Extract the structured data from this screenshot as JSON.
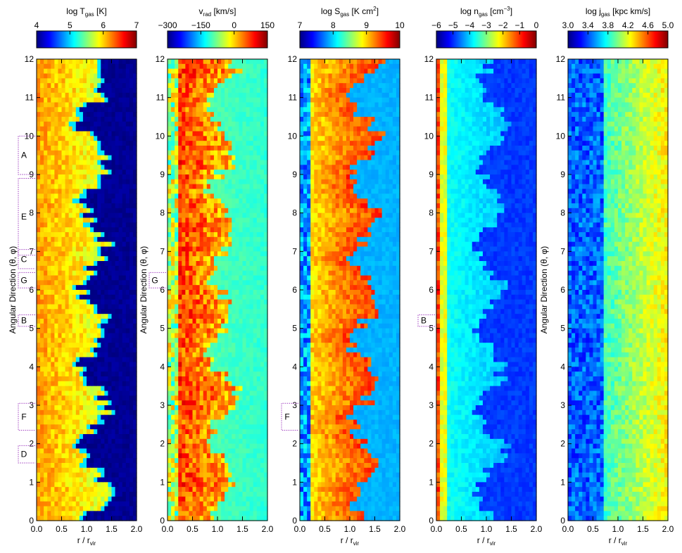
{
  "chart_data": [
    {
      "type": "heatmap",
      "colorbar": {
        "label": "log T",
        "sub": "gas",
        "unit": "[K]",
        "ticks": [
          "4",
          "5",
          "6",
          "7"
        ],
        "range": [
          4,
          7
        ]
      },
      "xlabel": "r / r",
      "xlabel_sub": "vir",
      "ylabel": "Angular Direction (θ, φ)",
      "xlim": [
        0.0,
        2.0
      ],
      "ylim": [
        0,
        12
      ],
      "xticks": [
        "0.0",
        "0.5",
        "1.0",
        "1.5",
        "2.0"
      ],
      "yticks": [
        "0",
        "1",
        "2",
        "3",
        "4",
        "5",
        "6",
        "7",
        "8",
        "9",
        "10",
        "11",
        "12"
      ],
      "annotations": [
        {
          "text": "A",
          "y": [
            9.0,
            10.0
          ]
        },
        {
          "text": "E",
          "y": [
            6.9,
            8.9
          ]
        },
        {
          "text": "C",
          "y": [
            6.55,
            7.05
          ]
        },
        {
          "text": "G",
          "y": [
            6.05,
            6.45
          ]
        },
        {
          "text": "B",
          "y": [
            5.05,
            5.35
          ]
        },
        {
          "text": "F",
          "y": [
            2.35,
            3.05
          ]
        },
        {
          "text": "D",
          "y": [
            1.5,
            1.95
          ]
        }
      ],
      "profile": "T"
    },
    {
      "type": "heatmap",
      "colorbar": {
        "label": "v",
        "sub": "rad",
        "unit": "[km/s]",
        "ticks": [
          "−300",
          "−150",
          "0",
          "150"
        ],
        "range": [
          -300,
          150
        ]
      },
      "xlabel": "",
      "xlabel_sub": "",
      "ylabel": "Angular Direction (θ, φ)",
      "xlim": [
        0.0,
        2.0
      ],
      "ylim": [
        0,
        12
      ],
      "xticks": [
        "0.0",
        "0.5",
        "1.0",
        "1.5",
        "2.0"
      ],
      "yticks": [
        "0",
        "1",
        "2",
        "3",
        "4",
        "5",
        "6",
        "7",
        "8",
        "9",
        "10",
        "11",
        "12"
      ],
      "annotations": [
        {
          "text": "G",
          "y": [
            6.05,
            6.45
          ]
        }
      ],
      "profile": "V"
    },
    {
      "type": "heatmap",
      "colorbar": {
        "label": "log S",
        "sub": "gas",
        "unit": "[K cm",
        "unit_sup": "2",
        "unit_end": "]",
        "ticks": [
          "7",
          "8",
          "9",
          "10"
        ],
        "range": [
          7,
          10
        ]
      },
      "xlabel": "r / r",
      "xlabel_sub": "vir",
      "ylabel": "",
      "xlim": [
        0.0,
        2.0
      ],
      "ylim": [
        0,
        12
      ],
      "xticks": [
        "0.0",
        "0.5",
        "1.0",
        "1.5",
        "2.0"
      ],
      "yticks": [
        "0",
        "1",
        "2",
        "3",
        "4",
        "5",
        "6",
        "7",
        "8",
        "9",
        "10",
        "11",
        "12"
      ],
      "annotations": [
        {
          "text": "F",
          "y": [
            2.35,
            3.05
          ]
        }
      ],
      "profile": "S"
    },
    {
      "type": "heatmap",
      "colorbar": {
        "label": "log n",
        "sub": "gas",
        "unit": "[cm",
        "unit_sup": "−3",
        "unit_end": "]",
        "ticks": [
          "−6",
          "−5",
          "−4",
          "−3",
          "−2",
          "−1",
          "0"
        ],
        "range": [
          -6,
          0
        ]
      },
      "xlabel": "r / r",
      "xlabel_sub": "vir",
      "ylabel": "",
      "xlim": [
        0.0,
        2.0
      ],
      "ylim": [
        0,
        12
      ],
      "xticks": [
        "0.0",
        "0.5",
        "1.0",
        "1.5",
        "2.0"
      ],
      "yticks": [
        "0",
        "1",
        "2",
        "3",
        "4",
        "5",
        "6",
        "7",
        "8",
        "9",
        "10",
        "11",
        "12"
      ],
      "annotations": [
        {
          "text": "B",
          "y": [
            5.05,
            5.35
          ]
        }
      ],
      "profile": "N"
    },
    {
      "type": "heatmap",
      "colorbar": {
        "label": "log j",
        "sub": "gas",
        "unit": "[kpc km/s]",
        "ticks": [
          "3.0",
          "3.4",
          "3.8",
          "4.2",
          "4.6",
          "5.0"
        ],
        "range": [
          3.0,
          5.0
        ]
      },
      "xlabel": "r / r",
      "xlabel_sub": "vir",
      "ylabel": "Angular Direction (θ, φ)",
      "xlim": [
        0.0,
        2.0
      ],
      "ylim": [
        0,
        12
      ],
      "xticks": [
        "0.0",
        "0.5",
        "1.0",
        "1.5",
        "2.0"
      ],
      "yticks": [
        "0",
        "1",
        "2",
        "3",
        "4",
        "5",
        "6",
        "7",
        "8",
        "9",
        "10",
        "11",
        "12"
      ],
      "annotations": [],
      "profile": "J"
    }
  ],
  "colors": {
    "colormap": [
      "#00007f",
      "#0000ff",
      "#007fff",
      "#00ffff",
      "#7fff7f",
      "#ffff00",
      "#ff7f00",
      "#ff0000",
      "#7f0000"
    ],
    "annotation": "#a040c0"
  }
}
